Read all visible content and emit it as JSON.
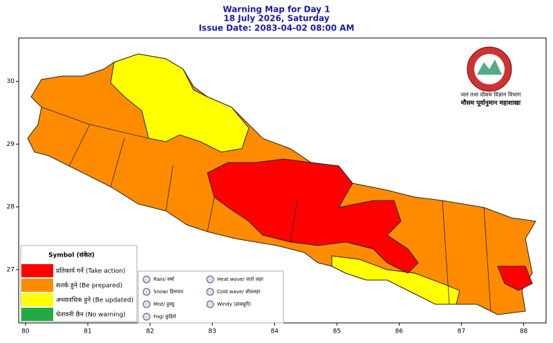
{
  "title": [
    "Warning Map for Day 1",
    "18 July 2026, Saturday",
    "Issue Date: 2083-04-02 08:00 AM"
  ],
  "map": {
    "xlim": [
      79.89,
      88.36
    ],
    "ylim": [
      26.15,
      30.69
    ],
    "xticks": [
      80,
      81,
      82,
      83,
      84,
      85,
      86,
      87,
      88
    ],
    "yticks": [
      27,
      28,
      29,
      30
    ]
  },
  "legend": {
    "title": "Symbol (संकेत)",
    "items": [
      {
        "label": "प्रतिकार्य गर्ने (Take action)",
        "color": "#ff0000"
      },
      {
        "label": "सतर्क हुने (Be prepared)",
        "color": "#ff8c00"
      },
      {
        "label": "अध्यावधिक हुने (Be updated)",
        "color": "#ffff00"
      },
      {
        "label": "चेतावनी छैन (No warning)",
        "color": "#22aa44"
      }
    ]
  },
  "symbols": [
    "Rain/ वर्षा",
    "Snow/ हिमपात",
    "Mist/ हुस्सु",
    "Fog/ कुहिरो",
    "Heat wave/ तातो लहर",
    "Cold wave/ शीतलहर",
    "Windy (हावाहुरी)"
  ],
  "agency": [
    "जल तथा मौसम विज्ञान विभाग",
    "मौसम पूर्वानुमान महाशाखा"
  ]
}
